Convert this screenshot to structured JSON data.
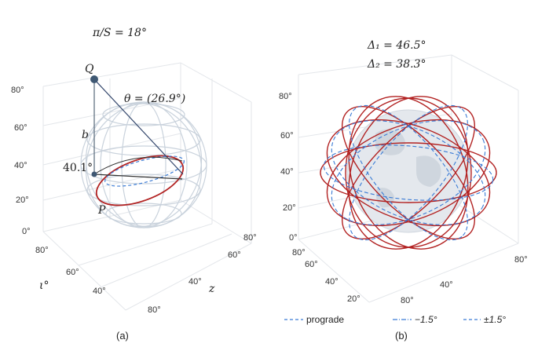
{
  "panel_a": {
    "title": "π/S = 18°",
    "point_q": "Q",
    "point_p": "P",
    "segment_b": "b",
    "theta_label": "θ = (26.9°)",
    "angle_label": "40.1°",
    "z_ticks": [
      "80°",
      "60°",
      "40°",
      "20°",
      "0°"
    ],
    "iota_ticks": [
      "80°",
      "60°",
      "40°"
    ],
    "iota_axis": "ι°",
    "z2_ticks": [
      "80°",
      "60°",
      "40°",
      "80°"
    ],
    "z2_axis": "z",
    "caption": "(a)"
  },
  "panel_b": {
    "delta1": "Δ₁ = 46.5°",
    "delta2": "Δ₂ = 38.3°",
    "z_ticks": [
      "80°",
      "60°",
      "40°",
      "20°",
      "0°"
    ],
    "left_ticks": [
      "80°",
      "60°",
      "40°",
      "20°"
    ],
    "bottom_ticks": [
      "80°",
      "40°",
      "80°"
    ],
    "legend": [
      "prograde",
      "−1.5°",
      "±1.5°"
    ],
    "caption": "(b)"
  },
  "colors": {
    "orbit_red": "#b22222",
    "orbit_blue": "#3a7bd5",
    "wire": "#c9d2dc",
    "grid": "#e3e6ea"
  }
}
